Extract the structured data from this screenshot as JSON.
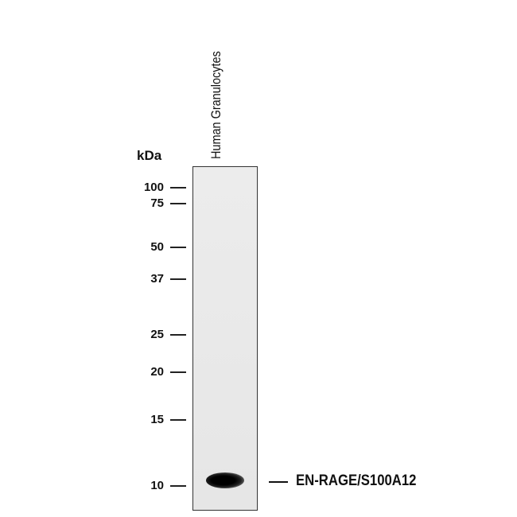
{
  "unit_label": "kDa",
  "lane_label": "Human Granulocytes",
  "markers": [
    "100",
    "75",
    "50",
    "37",
    "25",
    "20",
    "15",
    "10"
  ],
  "band_label": "EN-RAGE/S100A12"
}
